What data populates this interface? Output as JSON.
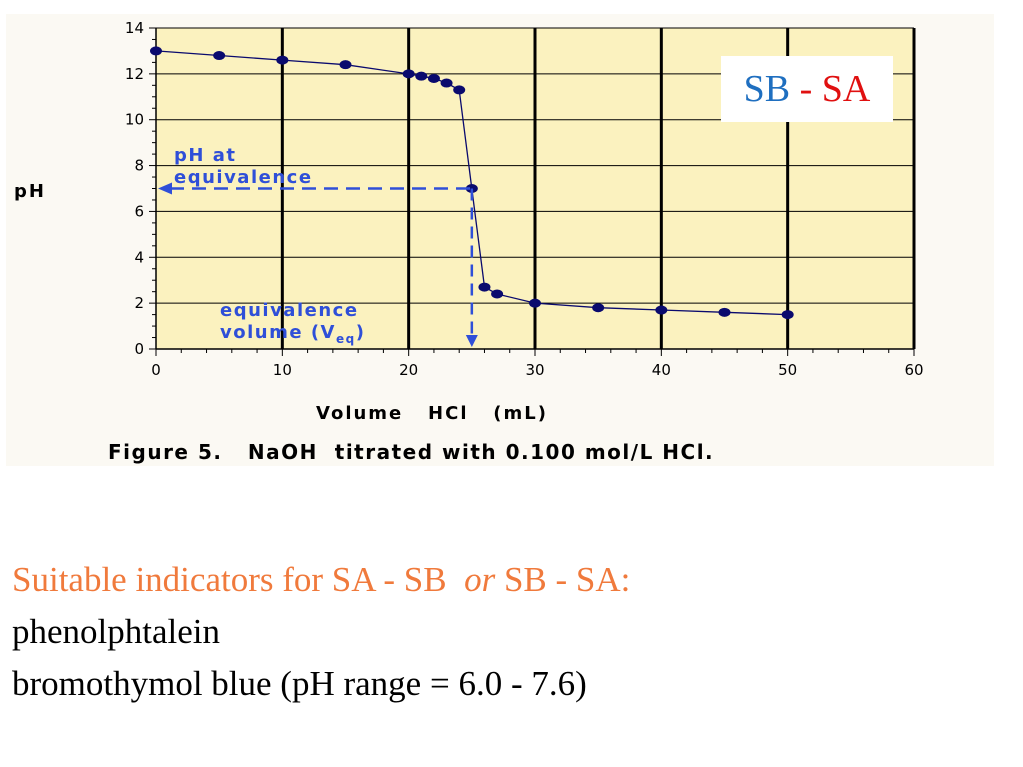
{
  "legend": {
    "sb": "SB",
    "dash": " - ",
    "sa": "SA",
    "sb_color": "#1f6fc0",
    "sa_color": "#e01010"
  },
  "annotations": {
    "ph_at_line1": "pH at",
    "ph_at_line2": "equivalence",
    "veq_line1": "equivalence",
    "veq_line2_prefix": "volume (V",
    "veq_sub": "eq",
    "veq_line2_suffix": ")",
    "color": "#2f4fd8"
  },
  "caption": "Figure 5.   NaOH  titrated with 0.100 mol/L HCl.",
  "notes": {
    "line1_a": "Suitable indicators for SA - SB  ",
    "line1_or": "or",
    "line1_b": " SB - SA:",
    "line2": "phenolphtalein",
    "line3": "bromothymol blue (pH range = 6.0 - 7.6)",
    "heading_color": "#f07a3c"
  },
  "chart_data": {
    "type": "line",
    "title": "",
    "xlabel": "Volume   HCl   (mL)",
    "ylabel": "pH",
    "xlim": [
      0,
      60
    ],
    "ylim": [
      0,
      14
    ],
    "xticks": [
      0,
      10,
      20,
      30,
      40,
      50,
      60
    ],
    "yticks": [
      0,
      2,
      4,
      6,
      8,
      10,
      12,
      14
    ],
    "grid": true,
    "plot_background": "#fbf2bf",
    "marker_color": "#0a0a6e",
    "series": [
      {
        "x": [
          0,
          5,
          10,
          15,
          20,
          21,
          22,
          23,
          24,
          25,
          26,
          27,
          30,
          35,
          40,
          45,
          50
        ],
        "y": [
          13.0,
          12.8,
          12.6,
          12.4,
          12.0,
          11.9,
          11.8,
          11.6,
          11.3,
          7.0,
          2.7,
          2.4,
          2.0,
          1.8,
          1.7,
          1.6,
          1.5
        ]
      }
    ],
    "equivalence_point": {
      "x": 25,
      "y": 7
    }
  }
}
